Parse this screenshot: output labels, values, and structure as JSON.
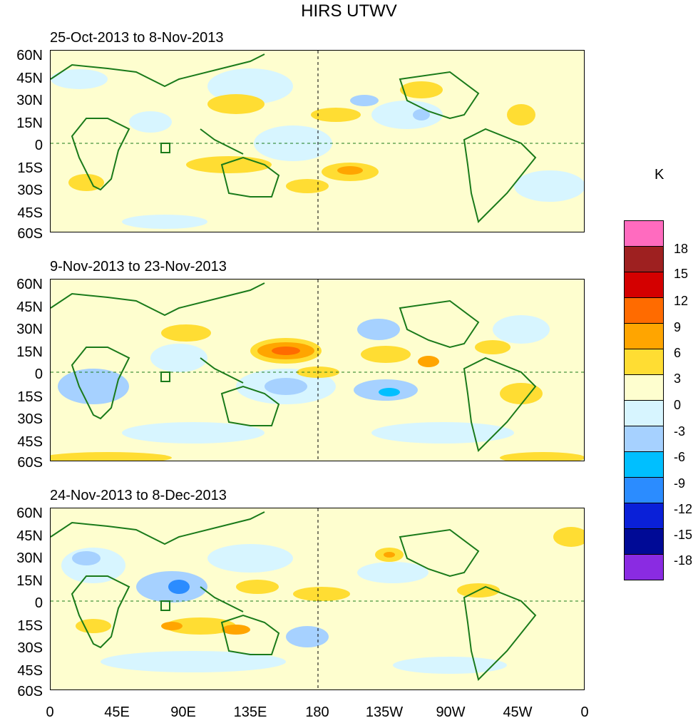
{
  "title": "HIRS UTWV",
  "panels": [
    {
      "label": "25-Oct-2013 to 8-Nov-2013"
    },
    {
      "label": "9-Nov-2013 to 23-Nov-2013"
    },
    {
      "label": "24-Nov-2013 to 8-Dec-2013"
    }
  ],
  "lat_labels": [
    "60N",
    "45N",
    "30N",
    "15N",
    "0",
    "15S",
    "30S",
    "45S",
    "60S"
  ],
  "lon_labels": [
    "0",
    "45E",
    "90E",
    "135E",
    "180",
    "135W",
    "90W",
    "45W",
    "0"
  ],
  "colorbar": {
    "unit": "K",
    "labels": [
      "18",
      "15",
      "12",
      "9",
      "6",
      "3",
      "0",
      "-3",
      "-6",
      "-9",
      "-12",
      "-15",
      "-18"
    ],
    "colors": [
      "#ff6bbf",
      "#9e2020",
      "#d40000",
      "#ff6b00",
      "#ffa500",
      "#ffdd33",
      "#fefecf",
      "#d7f5ff",
      "#a6d1ff",
      "#00bfff",
      "#2b8cff",
      "#0a20d8",
      "#000a96",
      "#8a2be2"
    ]
  },
  "colors": {
    "coast": "#1a7a1a",
    "frame": "#000000"
  }
}
